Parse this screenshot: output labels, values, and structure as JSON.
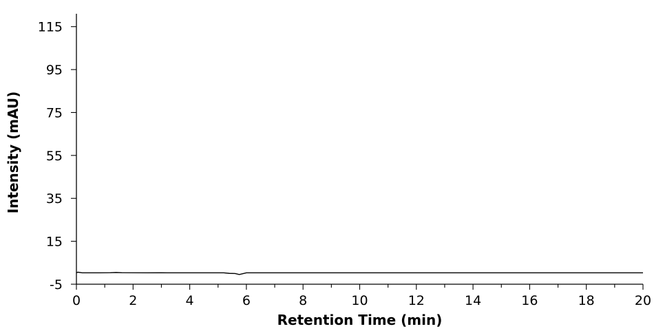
{
  "chart_data": {
    "type": "line",
    "xlabel": "Retention Time (min)",
    "ylabel": "Intensity (mAU)",
    "xlim": [
      0,
      20
    ],
    "ylim": [
      -5,
      121
    ],
    "x_ticks": [
      "0",
      "2",
      "4",
      "6",
      "8",
      "10",
      "12",
      "14",
      "16",
      "18",
      "20"
    ],
    "x_minor_step": 1,
    "y_ticks": [
      "-5",
      "15",
      "35",
      "55",
      "75",
      "95",
      "115"
    ],
    "grid": false,
    "legend": "none",
    "series": [
      {
        "color": "#000000",
        "x": [
          0,
          0.05,
          0.2,
          0.8,
          1.2,
          1.4,
          1.6,
          2.5,
          3.0,
          3.2,
          4.0,
          5.2,
          5.4,
          5.6,
          5.75,
          5.9,
          6.0,
          6.5,
          8.0,
          10.0,
          12.0,
          14.0,
          16.0,
          18.0,
          20.0
        ],
        "y": [
          0.3,
          0.6,
          0.3,
          0.3,
          0.35,
          0.45,
          0.35,
          0.3,
          0.35,
          0.3,
          0.3,
          0.3,
          0.05,
          0.0,
          -0.5,
          0.0,
          0.3,
          0.3,
          0.3,
          0.3,
          0.3,
          0.3,
          0.3,
          0.3,
          0.3
        ]
      }
    ]
  }
}
